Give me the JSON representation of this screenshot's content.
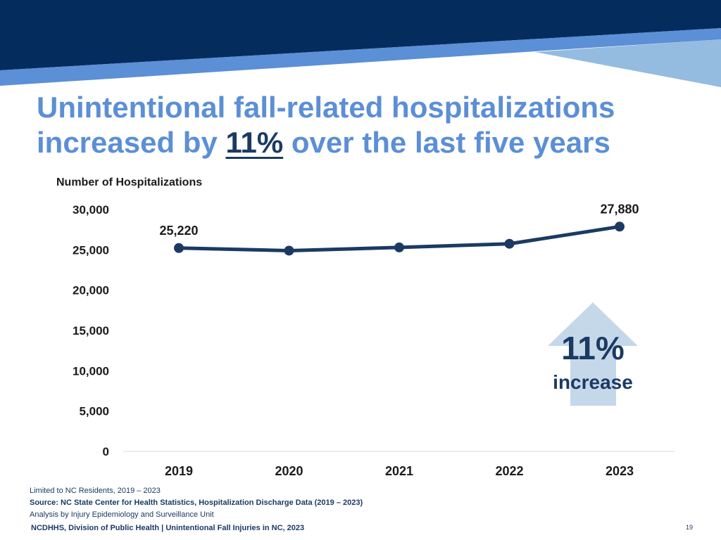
{
  "slide": {
    "title_part1": "Unintentional fall-related hospitalizations increased by ",
    "title_highlight": "11%",
    "title_part2": " over the last five years",
    "callout_value": "11%",
    "callout_label": "increase",
    "footnote_residents": "Limited to NC Residents, 2019 – 2023",
    "footnote_source": "Source: NC State Center for Health Statistics, Hospitalization Discharge Data (2019 – 2023)",
    "footnote_analysis": "Analysis by Injury Epidemiology and Surveillance Unit",
    "footer_text": "NCDHHS, Division of Public Health | Unintentional Fall Injuries in NC, 2023",
    "page_number": "19"
  },
  "colors": {
    "line": "#1b3a63",
    "title": "#5b8fd6",
    "banner_dark": "#042d5e",
    "banner_mid": "#5b8fd6",
    "banner_light": "#94bbe0",
    "arrow": "#c5d8ea"
  },
  "chart_data": {
    "type": "line",
    "title": "",
    "ylabel": "Number of Hospitalizations",
    "xlabel": "",
    "categories": [
      "2019",
      "2020",
      "2021",
      "2022",
      "2023"
    ],
    "series": [
      {
        "name": "Hospitalizations",
        "values": [
          25220,
          24900,
          25300,
          25750,
          27880
        ]
      }
    ],
    "data_labels": [
      {
        "index": 0,
        "text": "25,220"
      },
      {
        "index": 4,
        "text": "27,880"
      }
    ],
    "ylim": [
      0,
      30000
    ],
    "yticks": [
      0,
      5000,
      10000,
      15000,
      20000,
      25000,
      30000
    ],
    "ytick_labels": [
      "0",
      "5,000",
      "10,000",
      "15,000",
      "20,000",
      "25,000",
      "30,000"
    ],
    "grid": false
  }
}
